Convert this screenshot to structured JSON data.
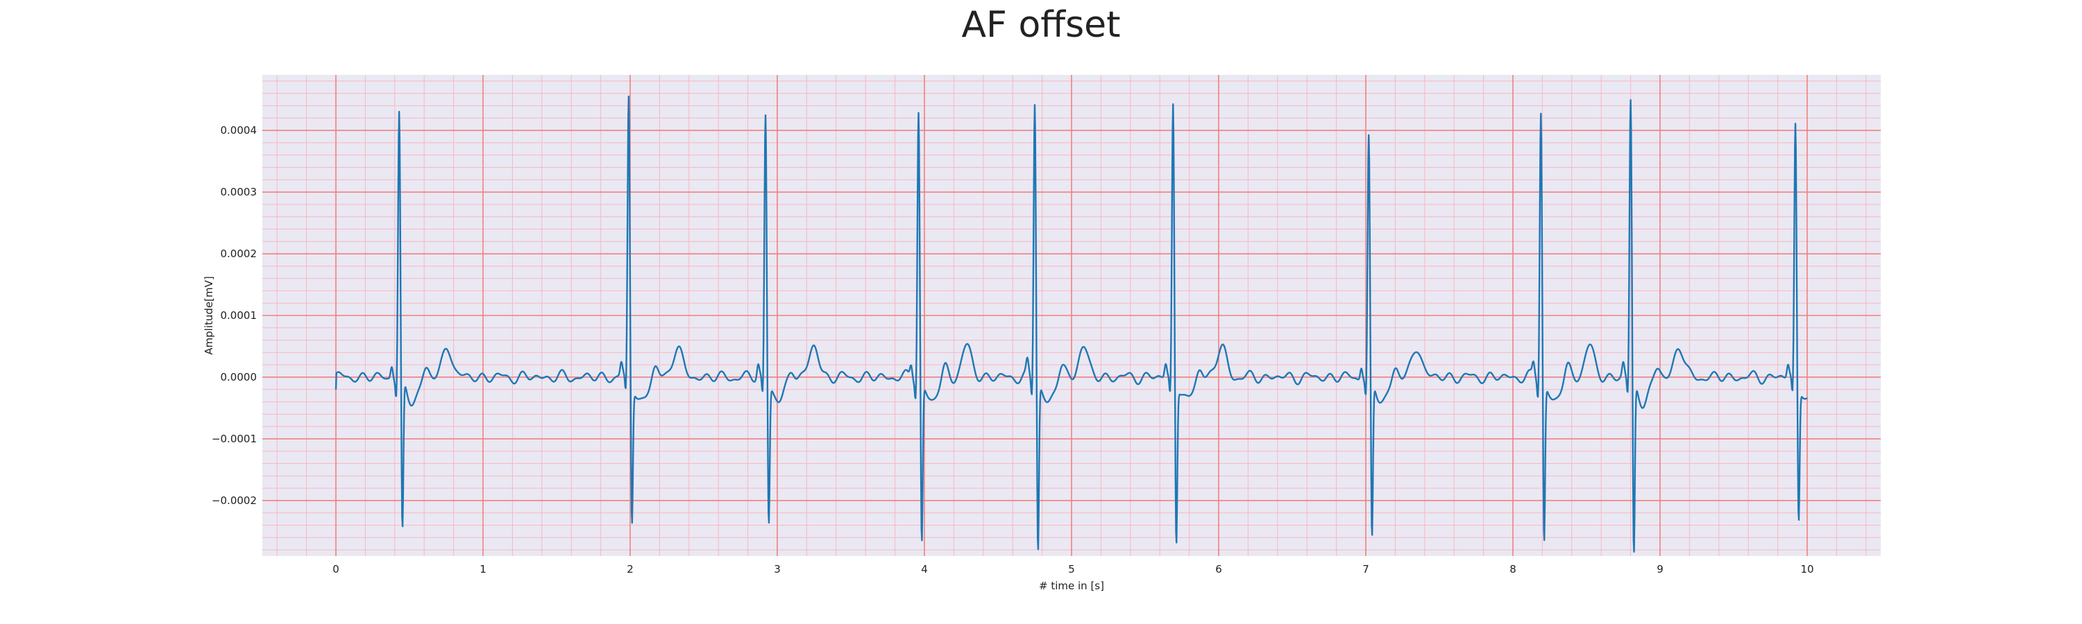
{
  "chart_data": {
    "type": "line",
    "title": "AF offset",
    "xlabel": "# time in [s]",
    "ylabel": "Amplitude[mV]",
    "xlim": [
      -0.5,
      10.5
    ],
    "ylim": [
      -0.00029,
      0.00049
    ],
    "x_ticks": [
      0,
      1,
      2,
      3,
      4,
      5,
      6,
      7,
      8,
      9,
      10
    ],
    "x_tick_labels": [
      "0",
      "1",
      "2",
      "3",
      "4",
      "5",
      "6",
      "7",
      "8",
      "9",
      "10"
    ],
    "y_ticks": [
      -0.0002,
      -0.0001,
      0.0,
      0.0001,
      0.0002,
      0.0003,
      0.0004
    ],
    "y_tick_labels": [
      "−0.0002",
      "−0.0001",
      "0.0000",
      "0.0001",
      "0.0002",
      "0.0003",
      "0.0004"
    ],
    "grid": "major and minor (ECG paper style)",
    "colors": {
      "background": "#eae8f2",
      "major_grid": "#f08080",
      "minor_grid": "#f5b8c4",
      "line": "#1f77b4"
    },
    "series": [
      {
        "values_description_free": true,
        "beats": [
          {
            "t": 0.43,
            "peak": 0.00043,
            "trough": -0.000222
          },
          {
            "t": 1.99,
            "peak": 0.000455,
            "trough": -0.000198
          },
          {
            "t": 2.92,
            "peak": 0.00043,
            "trough": -0.0002
          },
          {
            "t": 3.96,
            "peak": 0.000435,
            "trough": -0.000235
          },
          {
            "t": 4.75,
            "peak": 0.00045,
            "trough": -0.000248
          },
          {
            "t": 5.69,
            "peak": 0.000448,
            "trough": -0.000228
          },
          {
            "t": 7.02,
            "peak": 0.000388,
            "trough": -0.000232
          },
          {
            "t": 8.19,
            "peak": 0.000435,
            "trough": -0.000232
          },
          {
            "t": 8.8,
            "peak": 0.00045,
            "trough": -0.000258
          },
          {
            "t": 9.92,
            "peak": 0.000412,
            "trough": -0.000192
          }
        ],
        "x_range": [
          0,
          10
        ],
        "baseline_start": -2e-05
      }
    ]
  }
}
